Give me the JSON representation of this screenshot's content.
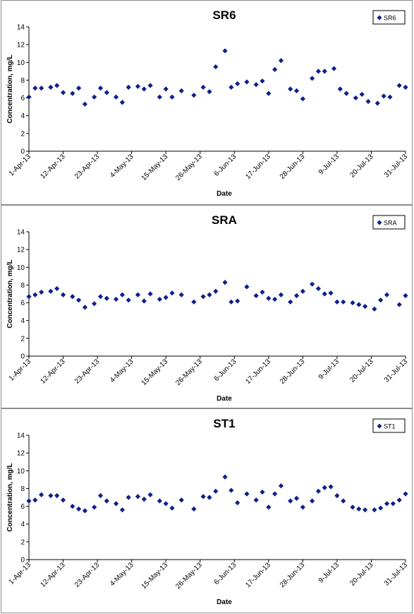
{
  "charts": [
    {
      "title": "SR6",
      "legend": "SR6",
      "ylabel": "Concentration, mg/L",
      "xlabel": "Date",
      "x_ticks": [
        "1-Apr-13",
        "12-Apr-13",
        "23-Apr-13",
        "4-May-13",
        "15-May-13",
        "26-May-13",
        "6-Jun-13",
        "17-Jun-13",
        "28-Jun-13",
        "9-Jul-13",
        "20-Jul-13",
        "31-Jul-13"
      ],
      "y_ticks": [
        "0",
        "2",
        "4",
        "6",
        "8",
        "10",
        "12",
        "14"
      ]
    },
    {
      "title": "SRA",
      "legend": "SRA",
      "ylabel": "Concentration, mg/L",
      "xlabel": "Date",
      "x_ticks": [
        "1-Apr-13",
        "12-Apr-13",
        "23-Apr-13",
        "4-May-13",
        "15-May-13",
        "26-May-13",
        "6-Jun-13",
        "17-Jun-13",
        "28-Jun-13",
        "9-Jul-13",
        "20-Jul-13",
        "31-Jul-13"
      ],
      "y_ticks": [
        "0",
        "2",
        "4",
        "6",
        "8",
        "10",
        "12",
        "14"
      ]
    },
    {
      "title": "ST1",
      "legend": "ST1",
      "ylabel": "Concentration, mg/L",
      "xlabel": "Date",
      "x_ticks": [
        "1-Apr-13",
        "12-Apr-13",
        "23-Apr-13",
        "4-May-13",
        "15-May-13",
        "26-May-13",
        "6-Jun-13",
        "17-Jun-13",
        "28-Jun-13",
        "9-Jul-13",
        "20-Jul-13",
        "31-Jul-13"
      ],
      "y_ticks": [
        "0",
        "2",
        "4",
        "6",
        "8",
        "10",
        "12",
        "14"
      ]
    }
  ],
  "colors": {
    "marker": "#0f1f8a",
    "axis": "#000000"
  },
  "chart_data": [
    {
      "type": "scatter",
      "title": "SR6",
      "xlabel": "Date",
      "ylabel": "Concentration, mg/L",
      "xlim": [
        "2013-04-01",
        "2013-07-31"
      ],
      "ylim": [
        0,
        14
      ],
      "grid": false,
      "legend_position": "top-right",
      "marker": "diamond",
      "series": [
        {
          "name": "SR6",
          "x": [
            "2013-04-01",
            "2013-04-03",
            "2013-04-05",
            "2013-04-08",
            "2013-04-10",
            "2013-04-12",
            "2013-04-15",
            "2013-04-17",
            "2013-04-19",
            "2013-04-22",
            "2013-04-24",
            "2013-04-26",
            "2013-04-29",
            "2013-05-01",
            "2013-05-03",
            "2013-05-06",
            "2013-05-08",
            "2013-05-10",
            "2013-05-13",
            "2013-05-15",
            "2013-05-17",
            "2013-05-20",
            "2013-05-24",
            "2013-05-27",
            "2013-05-29",
            "2013-05-31",
            "2013-06-03",
            "2013-06-05",
            "2013-06-07",
            "2013-06-10",
            "2013-06-13",
            "2013-06-15",
            "2013-06-17",
            "2013-06-19",
            "2013-06-21",
            "2013-06-24",
            "2013-06-26",
            "2013-06-28",
            "2013-07-01",
            "2013-07-03",
            "2013-07-05",
            "2013-07-08",
            "2013-07-10",
            "2013-07-12",
            "2013-07-15",
            "2013-07-17",
            "2013-07-19",
            "2013-07-22",
            "2013-07-24",
            "2013-07-26",
            "2013-07-29",
            "2013-07-31"
          ],
          "y": [
            6.1,
            7.1,
            7.1,
            7.2,
            7.4,
            6.6,
            6.5,
            7.1,
            5.3,
            6.1,
            7.1,
            6.6,
            6.1,
            5.5,
            7.2,
            7.3,
            7.0,
            7.4,
            6.1,
            7.0,
            6.1,
            6.8,
            6.3,
            7.2,
            6.7,
            9.5,
            11.3,
            7.2,
            7.6,
            7.8,
            7.5,
            7.9,
            6.5,
            9.2,
            10.2,
            7.0,
            6.8,
            5.9,
            8.2,
            9.0,
            9.0,
            9.3,
            7.0,
            6.5,
            6.0,
            6.4,
            5.6,
            5.4,
            6.2,
            6.1,
            7.4,
            7.2
          ]
        }
      ]
    },
    {
      "type": "scatter",
      "title": "SRA",
      "xlabel": "Date",
      "ylabel": "Concentration, mg/L",
      "xlim": [
        "2013-04-01",
        "2013-07-31"
      ],
      "ylim": [
        0,
        14
      ],
      "grid": false,
      "legend_position": "top-right",
      "marker": "diamond",
      "series": [
        {
          "name": "SRA",
          "x": [
            "2013-04-01",
            "2013-04-03",
            "2013-04-05",
            "2013-04-08",
            "2013-04-10",
            "2013-04-12",
            "2013-04-15",
            "2013-04-17",
            "2013-04-19",
            "2013-04-22",
            "2013-04-24",
            "2013-04-26",
            "2013-04-29",
            "2013-05-01",
            "2013-05-03",
            "2013-05-06",
            "2013-05-08",
            "2013-05-10",
            "2013-05-13",
            "2013-05-15",
            "2013-05-17",
            "2013-05-20",
            "2013-05-24",
            "2013-05-27",
            "2013-05-29",
            "2013-05-31",
            "2013-06-03",
            "2013-06-05",
            "2013-06-07",
            "2013-06-10",
            "2013-06-13",
            "2013-06-15",
            "2013-06-17",
            "2013-06-19",
            "2013-06-21",
            "2013-06-24",
            "2013-06-26",
            "2013-06-28",
            "2013-07-01",
            "2013-07-03",
            "2013-07-05",
            "2013-07-07",
            "2013-07-09",
            "2013-07-11",
            "2013-07-14",
            "2013-07-16",
            "2013-07-18",
            "2013-07-21",
            "2013-07-23",
            "2013-07-25",
            "2013-07-29",
            "2013-07-31"
          ],
          "y": [
            6.7,
            6.9,
            7.2,
            7.3,
            7.6,
            6.9,
            6.7,
            6.3,
            5.5,
            5.9,
            6.7,
            6.5,
            6.4,
            6.9,
            6.3,
            6.9,
            6.2,
            7.0,
            6.4,
            6.6,
            7.1,
            6.9,
            6.1,
            6.7,
            6.9,
            7.3,
            8.3,
            6.1,
            6.2,
            7.8,
            6.8,
            7.2,
            6.5,
            6.4,
            6.9,
            6.1,
            6.8,
            7.3,
            8.1,
            7.6,
            7.0,
            7.1,
            6.1,
            6.1,
            6.0,
            5.8,
            5.6,
            5.3,
            6.3,
            6.9,
            5.8,
            6.8
          ]
        }
      ]
    },
    {
      "type": "scatter",
      "title": "ST1",
      "xlabel": "Date",
      "ylabel": "Concentration, mg/L",
      "xlim": [
        "2013-04-01",
        "2013-07-31"
      ],
      "ylim": [
        0,
        14
      ],
      "grid": false,
      "legend_position": "top-right",
      "marker": "diamond",
      "series": [
        {
          "name": "ST1",
          "x": [
            "2013-04-01",
            "2013-04-03",
            "2013-04-05",
            "2013-04-08",
            "2013-04-10",
            "2013-04-12",
            "2013-04-15",
            "2013-04-17",
            "2013-04-19",
            "2013-04-22",
            "2013-04-24",
            "2013-04-26",
            "2013-04-29",
            "2013-05-01",
            "2013-05-03",
            "2013-05-06",
            "2013-05-08",
            "2013-05-10",
            "2013-05-13",
            "2013-05-15",
            "2013-05-17",
            "2013-05-20",
            "2013-05-24",
            "2013-05-27",
            "2013-05-29",
            "2013-05-31",
            "2013-06-03",
            "2013-06-05",
            "2013-06-07",
            "2013-06-10",
            "2013-06-13",
            "2013-06-15",
            "2013-06-17",
            "2013-06-19",
            "2013-06-21",
            "2013-06-24",
            "2013-06-26",
            "2013-06-28",
            "2013-07-01",
            "2013-07-03",
            "2013-07-05",
            "2013-07-07",
            "2013-07-09",
            "2013-07-11",
            "2013-07-14",
            "2013-07-16",
            "2013-07-18",
            "2013-07-21",
            "2013-07-23",
            "2013-07-25",
            "2013-07-27",
            "2013-07-29",
            "2013-07-31"
          ],
          "y": [
            6.6,
            6.7,
            7.3,
            7.2,
            7.2,
            6.7,
            6.0,
            5.7,
            5.5,
            5.9,
            7.2,
            6.6,
            6.3,
            5.6,
            7.0,
            7.1,
            6.8,
            7.3,
            6.6,
            6.3,
            5.8,
            6.7,
            5.7,
            7.1,
            7.0,
            7.7,
            9.3,
            7.8,
            6.4,
            7.4,
            6.7,
            7.6,
            5.9,
            7.4,
            8.3,
            6.6,
            6.9,
            5.9,
            6.6,
            7.7,
            8.1,
            8.2,
            7.2,
            6.6,
            5.9,
            5.7,
            5.6,
            5.6,
            5.8,
            6.3,
            6.3,
            6.7,
            7.4
          ]
        }
      ]
    }
  ]
}
